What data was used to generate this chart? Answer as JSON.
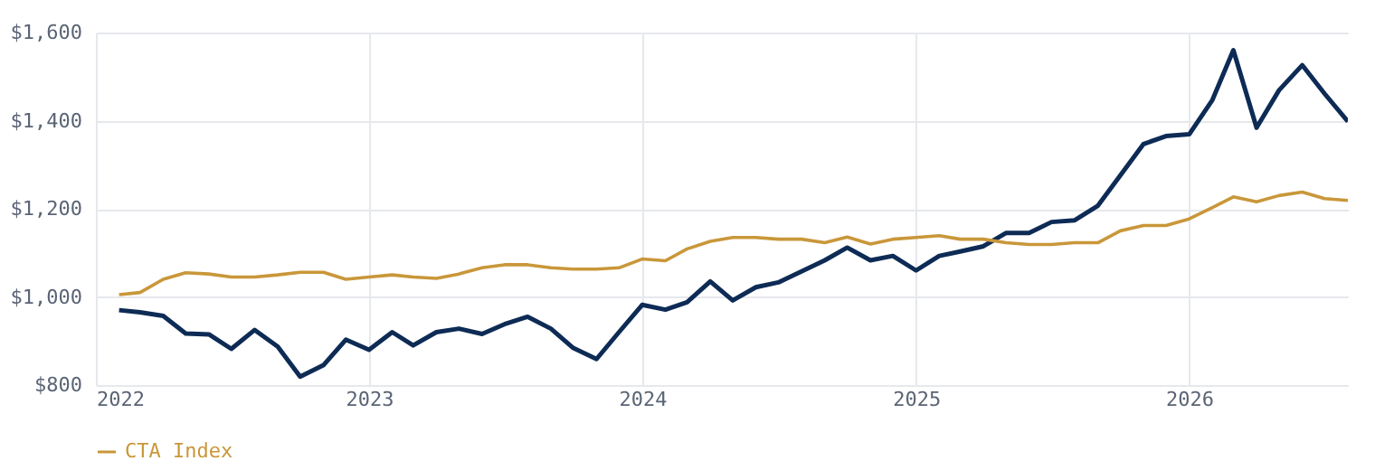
{
  "chart_data": {
    "type": "line",
    "grid": true,
    "legend": "bottom",
    "line_style": "solid",
    "xlim": [
      "2022-01",
      "2026-08"
    ],
    "xticks": [
      {
        "value": "2022",
        "label": "2022"
      },
      {
        "value": "2023",
        "label": "2023"
      },
      {
        "value": "2024",
        "label": "2024"
      },
      {
        "value": "2025",
        "label": "2025"
      },
      {
        "value": "2026",
        "label": "2026"
      }
    ],
    "ylim": [
      800,
      1600
    ],
    "yticks": [
      {
        "value": 800,
        "label": "$800"
      },
      {
        "value": 1000,
        "label": "$1,000"
      },
      {
        "value": 1200,
        "label": "$1,200"
      },
      {
        "value": 1400,
        "label": "$1,400"
      },
      {
        "value": 1600,
        "label": "$1,600"
      }
    ],
    "x": [
      "2022-02",
      "2022-03",
      "2022-04",
      "2022-05",
      "2022-06",
      "2022-07",
      "2022-08",
      "2022-09",
      "2022-10",
      "2022-11",
      "2022-12",
      "2023-01",
      "2023-02",
      "2023-03",
      "2023-04",
      "2023-05",
      "2023-06",
      "2023-07",
      "2023-08",
      "2023-09",
      "2023-10",
      "2023-11",
      "2023-12",
      "2024-01",
      "2024-02",
      "2024-03",
      "2024-04",
      "2024-05",
      "2024-06",
      "2024-07",
      "2024-08",
      "2024-09",
      "2024-10",
      "2024-11",
      "2024-12",
      "2025-01",
      "2025-02",
      "2025-03",
      "2025-04",
      "2025-05",
      "2025-06",
      "2025-07",
      "2025-08",
      "2025-09",
      "2025-10",
      "2025-11",
      "2025-12",
      "2026-01",
      "2026-02",
      "2026-03",
      "2026-04",
      "2026-05",
      "2026-06",
      "2026-07",
      "2026-08"
    ],
    "series": [
      {
        "color": "#0d2b55",
        "values": [
          970,
          965,
          957,
          917,
          915,
          882,
          925,
          887,
          819,
          845,
          903,
          880,
          920,
          890,
          920,
          928,
          916,
          938,
          955,
          928,
          884,
          859,
          920,
          982,
          971,
          988,
          1035,
          992,
          1022,
          1033,
          1058,
          1083,
          1112,
          1083,
          1093,
          1060,
          1093,
          1103,
          1115,
          1145,
          1145,
          1170,
          1174,
          1207,
          1276,
          1347,
          1365,
          1369,
          1447,
          1560,
          1384,
          1469,
          1526,
          1461,
          1398
        ]
      },
      {
        "name": "CTA Index",
        "color": "#c9973a",
        "values": [
          1005,
          1010,
          1040,
          1055,
          1052,
          1045,
          1045,
          1050,
          1056,
          1056,
          1040,
          1045,
          1050,
          1045,
          1042,
          1052,
          1066,
          1073,
          1073,
          1066,
          1063,
          1063,
          1066,
          1086,
          1082,
          1109,
          1126,
          1135,
          1135,
          1131,
          1131,
          1123,
          1136,
          1120,
          1131,
          1135,
          1139,
          1131,
          1131,
          1123,
          1119,
          1119,
          1123,
          1123,
          1150,
          1162,
          1162,
          1177,
          1203,
          1227,
          1216,
          1230,
          1238,
          1223,
          1219
        ]
      }
    ]
  }
}
